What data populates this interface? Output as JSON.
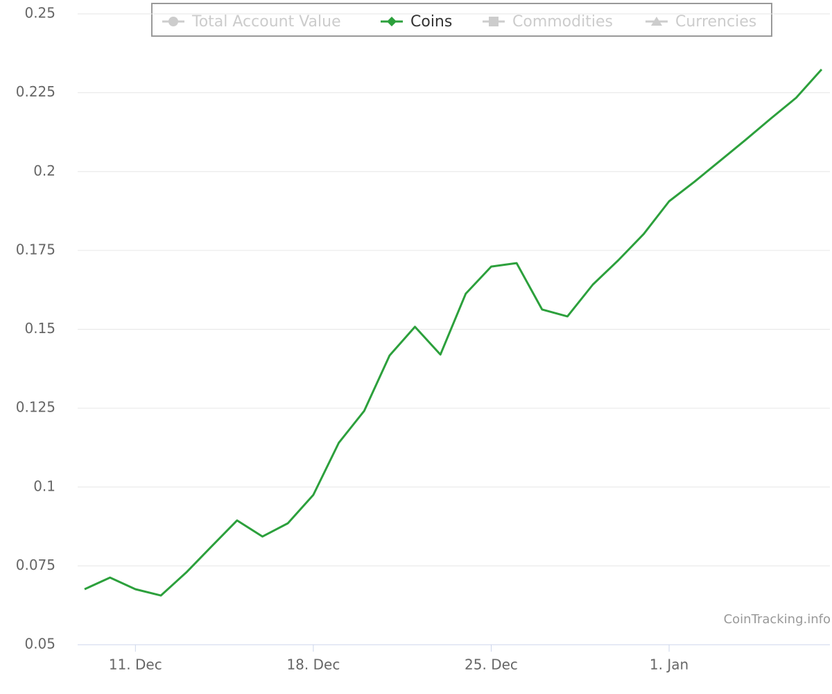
{
  "chart_data": {
    "type": "line",
    "categories": [
      null,
      null,
      "11. Dec",
      null,
      null,
      null,
      null,
      null,
      null,
      "18. Dec",
      null,
      null,
      null,
      null,
      null,
      null,
      "25. Dec",
      null,
      null,
      null,
      null,
      null,
      null,
      "1. Jan",
      null,
      null,
      null,
      null,
      null,
      null
    ],
    "series": [
      {
        "name": "Total Account Value",
        "color": "#cccccc",
        "marker": "circle",
        "visible": false
      },
      {
        "name": "Coins",
        "color": "#2ca03c",
        "marker": "diamond",
        "visible": true,
        "values": [
          0.0676,
          0.0713,
          0.0676,
          0.0656,
          0.0729,
          0.0812,
          0.0894,
          0.0843,
          0.0885,
          0.0975,
          0.114,
          0.1241,
          0.1417,
          0.1508,
          0.142,
          0.1613,
          0.1699,
          0.171,
          0.1563,
          0.1541,
          0.1642,
          0.1719,
          0.1802,
          0.1906,
          0.1968,
          0.2034,
          0.21,
          0.2168,
          0.2234,
          0.2324
        ]
      },
      {
        "name": "Commodities",
        "color": "#cccccc",
        "marker": "square",
        "visible": false
      },
      {
        "name": "Currencies",
        "color": "#cccccc",
        "marker": "triangle",
        "visible": false
      }
    ],
    "ylim": [
      0.05,
      0.25
    ],
    "yticks": [
      0.05,
      0.075,
      0.1,
      0.125,
      0.15,
      0.175,
      0.2,
      0.225,
      0.25
    ],
    "grid": true,
    "legend": "top",
    "credits": "CoinTracking.info"
  }
}
